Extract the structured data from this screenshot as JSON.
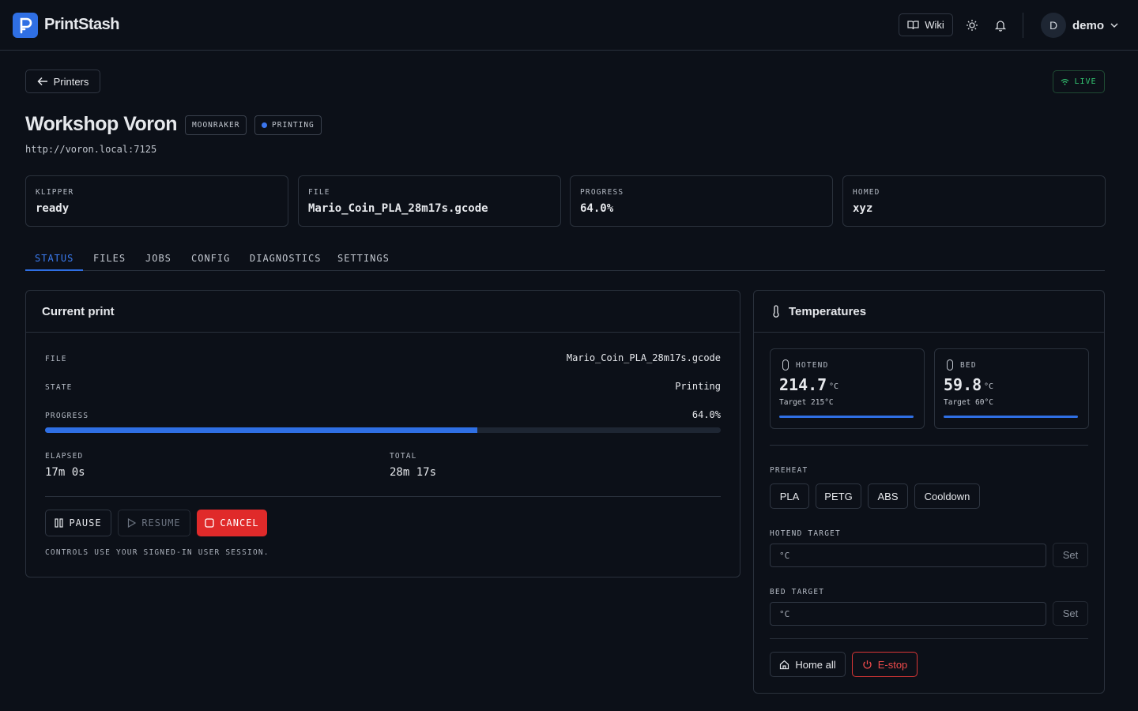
{
  "header": {
    "brand": "PrintStash",
    "wiki": "Wiki",
    "user_initial": "D",
    "user_name": "demo"
  },
  "back": "Printers",
  "live": "LIVE",
  "printer": {
    "name": "Workshop Voron",
    "badges": [
      "MOONRAKER",
      "PRINTING"
    ],
    "url": "http://voron.local:7125"
  },
  "stats": [
    {
      "label": "KLIPPER",
      "value": "ready"
    },
    {
      "label": "FILE",
      "value": "Mario_Coin_PLA_28m17s.gcode"
    },
    {
      "label": "PROGRESS",
      "value": "64.0%"
    },
    {
      "label": "HOMED",
      "value": "xyz"
    }
  ],
  "tabs": [
    "STATUS",
    "FILES",
    "JOBS",
    "CONFIG",
    "DIAGNOSTICS",
    "SETTINGS"
  ],
  "current_print": {
    "title": "Current print",
    "rows": [
      {
        "label": "FILE",
        "value": "Mario_Coin_PLA_28m17s.gcode"
      },
      {
        "label": "STATE",
        "value": "Printing"
      }
    ],
    "progress": {
      "label": "PROGRESS",
      "value": 64.0,
      "value_label": "64.0%"
    },
    "times": [
      {
        "label": "ELAPSED",
        "value": "17m 0s"
      },
      {
        "label": "TOTAL",
        "value": "28m 17s"
      }
    ],
    "buttons": [
      "PAUSE",
      "RESUME",
      "CANCEL"
    ],
    "note": "CONTROLS USE YOUR SIGNED-IN USER SESSION."
  },
  "temperatures": {
    "title": "Temperatures",
    "sensors": [
      {
        "label": "HOTEND",
        "value": "214.7",
        "unit": "°C",
        "target": "Target 215°C"
      },
      {
        "label": "BED",
        "value": "59.8",
        "unit": "°C",
        "target": "Target 60°C"
      }
    ],
    "preheat_label": "PREHEAT",
    "preheat": [
      "PLA",
      "PETG",
      "ABS",
      "Cooldown"
    ],
    "inputs": [
      {
        "label": "HOTEND TARGET",
        "placeholder": "°C",
        "button": "Set"
      },
      {
        "label": "BED TARGET",
        "placeholder": "°C",
        "button": "Set"
      }
    ],
    "actions": [
      "Home all",
      "E-stop"
    ]
  }
}
